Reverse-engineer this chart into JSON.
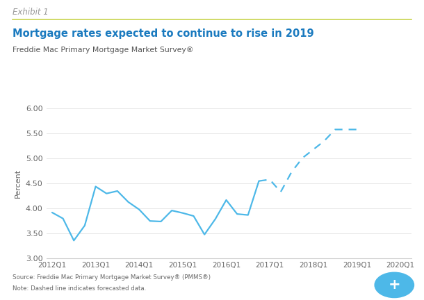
{
  "title": "Mortgage rates expected to continue to rise in 2019",
  "subtitle": "Freddie Mac Primary Mortgage Market Survey®",
  "exhibit": "Exhibit 1",
  "ylabel": "Percent",
  "source": "Source: Freddie Mac Primary Mortgage Market Survey® (PMMS®)",
  "note": "Note: Dashed line indicates forecasted data.",
  "title_color": "#1a7abf",
  "line_color": "#4db8e8",
  "background_color": "#ffffff",
  "ylim": [
    3.0,
    6.0
  ],
  "yticks": [
    3.0,
    3.5,
    4.0,
    4.5,
    5.0,
    5.5,
    6.0
  ],
  "xtick_positions": [
    0,
    4,
    8,
    12,
    16,
    20,
    24,
    28,
    32
  ],
  "xtick_labels": [
    "2012Q1",
    "2013Q1",
    "2014Q1",
    "2015Q1",
    "2016Q1",
    "2017Q1",
    "2018Q1",
    "2019Q1",
    "2020Q1"
  ],
  "actual_x": [
    0,
    1,
    2,
    3,
    4,
    5,
    6,
    7,
    8,
    9,
    10,
    11,
    12,
    13,
    14,
    15,
    16,
    17,
    18,
    19,
    20,
    21,
    22,
    23,
    24,
    25,
    26,
    27,
    28
  ],
  "actual_y": [
    3.91,
    3.79,
    3.35,
    3.65,
    4.43,
    4.29,
    4.34,
    4.12,
    3.97,
    3.74,
    3.73,
    3.95,
    3.9,
    3.84,
    3.47,
    3.78,
    4.16,
    3.88,
    3.86,
    4.54,
    4.57,
    4.32,
    4.72,
    5.0,
    5.17,
    5.34,
    5.57,
    5.57,
    5.57
  ],
  "forecast_start_idx": 19,
  "xlim": [
    -0.5,
    33
  ]
}
